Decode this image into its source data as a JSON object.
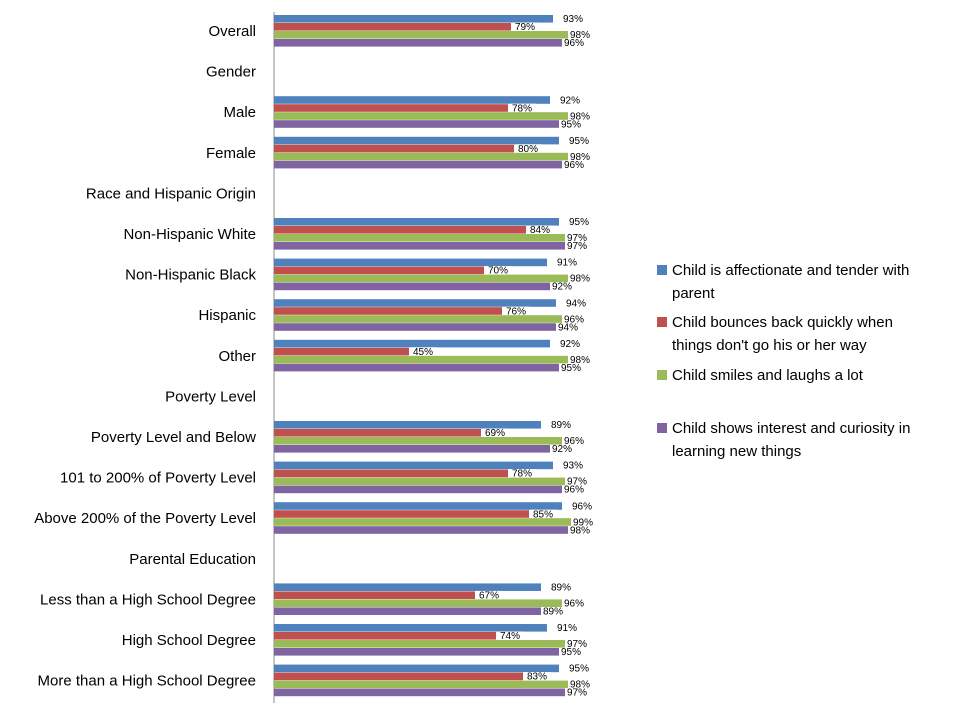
{
  "chart_data": {
    "type": "bar",
    "orientation": "horizontal",
    "xlim": [
      0,
      100
    ],
    "grid": false,
    "legend_position": "right",
    "categories": [
      "Overall",
      "Gender",
      "Male",
      "Female",
      "Race and Hispanic Origin",
      "Non-Hispanic White",
      "Non-Hispanic Black",
      "Hispanic",
      "Other",
      "Poverty Level",
      "Poverty Level and Below",
      "101 to 200% of Poverty Level",
      "Above 200% of the Poverty Level",
      "Parental Education",
      "Less than a High School Degree",
      "High School Degree",
      "More than a High School Degree"
    ],
    "series": [
      {
        "name": "Child is affectionate and tender with parent",
        "legend_lines": [
          "Child is affectionate and tender with",
          "parent"
        ],
        "color": "#4F81BD",
        "values": [
          93,
          null,
          92,
          95,
          null,
          95,
          91,
          94,
          92,
          null,
          89,
          93,
          96,
          null,
          89,
          91,
          95
        ],
        "labels": [
          "93%",
          "",
          "92%",
          "95%",
          "",
          "95%",
          "91%",
          "94%",
          "92%",
          "",
          "89%",
          "93%",
          "96%",
          "",
          "89%",
          "91%",
          "95%"
        ]
      },
      {
        "name": "Child bounces back quickly when things don't go his or her way",
        "legend_lines": [
          "Child bounces back quickly when",
          "things don't go his or her way"
        ],
        "color": "#C0504D",
        "values": [
          79,
          null,
          78,
          80,
          null,
          84,
          70,
          76,
          45,
          null,
          69,
          78,
          85,
          null,
          67,
          74,
          83
        ],
        "labels": [
          "79%",
          "",
          "78%",
          "80%",
          "",
          "84%",
          "70%",
          "76%",
          "45%",
          "",
          "69%",
          "78%",
          "85%",
          "",
          "67%",
          "74%",
          "83%"
        ]
      },
      {
        "name": "Child smiles and laughs a lot",
        "legend_lines": [
          "Child smiles and laughs a lot"
        ],
        "color": "#9BBB59",
        "values": [
          98,
          null,
          98,
          98,
          null,
          97,
          98,
          96,
          98,
          null,
          96,
          97,
          99,
          null,
          96,
          97,
          98
        ],
        "labels": [
          "98%",
          "",
          "98%",
          "98%",
          "",
          "97%",
          "98%",
          "96%",
          "98%",
          "",
          "96%",
          "97%",
          "99%",
          "",
          "96%",
          "97%",
          "98%"
        ]
      },
      {
        "name": "Child shows interest and curiosity in learning new things",
        "legend_lines": [
          "Child shows interest and curiosity in",
          "learning new things"
        ],
        "color": "#8064A2",
        "values": [
          96,
          null,
          95,
          96,
          null,
          97,
          92,
          94,
          95,
          null,
          92,
          96,
          98,
          null,
          89,
          95,
          97
        ],
        "labels": [
          "96%",
          "",
          "95%",
          "96%",
          "",
          "97%",
          "92%",
          "94%",
          "95%",
          "",
          "92%",
          "96%",
          "98%",
          "",
          "89%",
          "95%",
          "97%"
        ]
      }
    ]
  }
}
